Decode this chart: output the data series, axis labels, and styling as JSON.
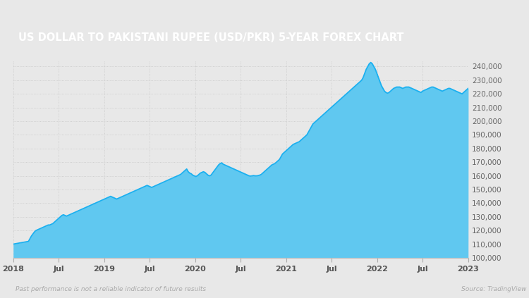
{
  "title": "US DOLLAR TO PAKISTANI RUPEE (USD/PKR) 5-YEAR FOREX CHART",
  "title_bg_color": "#8B5E3C",
  "title_text_color": "#ffffff",
  "bg_color": "#e8e8e8",
  "plot_bg_color": "#e8e8e8",
  "line_color": "#1ab0f0",
  "fill_color_top": "#60c8f0",
  "fill_color_bottom": "#e8f6fd",
  "footer_left": "Past performance is not a reliable indicator of future results",
  "footer_right": "Source: TradingView",
  "footer_color": "#aaaaaa",
  "x_tick_labels": [
    "2018",
    "Jul",
    "2019",
    "Jul",
    "2020",
    "Jul",
    "2021",
    "Jul",
    "2022",
    "Jul",
    "2023"
  ],
  "y_tick_labels": [
    "100,000",
    "110,000",
    "120,000",
    "130,000",
    "140,000",
    "150,000",
    "160,000",
    "170,000",
    "180,000",
    "190,000",
    "200,000",
    "210,000",
    "220,000",
    "230,000",
    "240,000"
  ],
  "y_min": 100000,
  "y_max": 244000,
  "grid_color": "#c8c8c8",
  "series_x": [
    0,
    1,
    2,
    3,
    4,
    5,
    6,
    7,
    8,
    9,
    10,
    11,
    12,
    13,
    14,
    15,
    16,
    17,
    18,
    19,
    20,
    21,
    22,
    23,
    24,
    25,
    26,
    27,
    28,
    29,
    30,
    31,
    32,
    33,
    34,
    35,
    36,
    37,
    38,
    39,
    40,
    41,
    42,
    43,
    44,
    45,
    46,
    47,
    48,
    49,
    50,
    51,
    52,
    53,
    54,
    55,
    56,
    57,
    58,
    59,
    60,
    61,
    62,
    63,
    64,
    65,
    66,
    67,
    68,
    69,
    70,
    71,
    72,
    73,
    74,
    75,
    76,
    77,
    78,
    79,
    80,
    81,
    82,
    83,
    84,
    85,
    86,
    87,
    88,
    89,
    90,
    91,
    92,
    93,
    94,
    95,
    96,
    97,
    98,
    99,
    100,
    101,
    102,
    103,
    104,
    105,
    106,
    107,
    108,
    109,
    110,
    111,
    112,
    113,
    114,
    115,
    116,
    117,
    118,
    119,
    120,
    121,
    122,
    123,
    124,
    125,
    126,
    127,
    128,
    129,
    130,
    131,
    132,
    133,
    134,
    135,
    136,
    137,
    138,
    139,
    140,
    141,
    142,
    143,
    144,
    145,
    146,
    147,
    148,
    149,
    150,
    151,
    152,
    153,
    154,
    155,
    156,
    157,
    158,
    159,
    160,
    161,
    162,
    163,
    164,
    165,
    166,
    167,
    168,
    169,
    170,
    171,
    172,
    173,
    174,
    175,
    176,
    177,
    178,
    179,
    180,
    181,
    182,
    183,
    184,
    185,
    186,
    187,
    188,
    189,
    190,
    191,
    192,
    193,
    194,
    195,
    196,
    197,
    198,
    199,
    200,
    201,
    202,
    203,
    204,
    205,
    206,
    207,
    208,
    209,
    210,
    211,
    212,
    213,
    214,
    215,
    216,
    217,
    218,
    219,
    220,
    221,
    222,
    223,
    224,
    225,
    226,
    227,
    228,
    229,
    230,
    231,
    232,
    233,
    234,
    235,
    236,
    237,
    238,
    239,
    240,
    241,
    242,
    243,
    244,
    245,
    246,
    247,
    248,
    249,
    250,
    251,
    252,
    253,
    254,
    255,
    256,
    257,
    258,
    259,
    260,
    261,
    262,
    263,
    264,
    265,
    266,
    267,
    268,
    269,
    270,
    271,
    272,
    273,
    274,
    275,
    276,
    277,
    278,
    279,
    280,
    281,
    282,
    283,
    284,
    285,
    286,
    287,
    288,
    289,
    290,
    291,
    292,
    293,
    294,
    295,
    296,
    297,
    298,
    299
  ],
  "series_y": [
    110000,
    110200,
    110400,
    110600,
    110800,
    111000,
    111200,
    111400,
    111600,
    111800,
    112000,
    114000,
    116000,
    117500,
    119000,
    120000,
    120500,
    121000,
    121500,
    122000,
    122500,
    123000,
    123500,
    124000,
    124000,
    124500,
    125000,
    126000,
    127000,
    128000,
    129000,
    130000,
    131000,
    131500,
    131000,
    130500,
    131000,
    131500,
    132000,
    132500,
    133000,
    133500,
    134000,
    134500,
    135000,
    135500,
    136000,
    136500,
    137000,
    137500,
    138000,
    138500,
    139000,
    139500,
    140000,
    140500,
    141000,
    141500,
    142000,
    142500,
    143000,
    143500,
    144000,
    144500,
    145000,
    144500,
    144000,
    143500,
    143000,
    143500,
    144000,
    144500,
    145000,
    145500,
    146000,
    146500,
    147000,
    147500,
    148000,
    148500,
    149000,
    149500,
    150000,
    150500,
    151000,
    151500,
    152000,
    152500,
    153000,
    152500,
    152000,
    151500,
    152000,
    152500,
    153000,
    153500,
    154000,
    154500,
    155000,
    155500,
    156000,
    156500,
    157000,
    157500,
    158000,
    158500,
    159000,
    159500,
    160000,
    160500,
    161000,
    162000,
    163000,
    164000,
    165000,
    163000,
    162000,
    161500,
    160500,
    160000,
    159500,
    160000,
    161000,
    162000,
    162500,
    163000,
    162500,
    161500,
    160500,
    160000,
    160500,
    162000,
    163500,
    165000,
    166500,
    168000,
    169000,
    169500,
    168500,
    168000,
    167500,
    167000,
    166500,
    166000,
    165500,
    165000,
    164500,
    164000,
    163500,
    163000,
    162500,
    162000,
    161500,
    161000,
    160500,
    160000,
    159800,
    160000,
    160200,
    160000,
    160000,
    160200,
    160500,
    161000,
    162000,
    163000,
    164000,
    165000,
    166000,
    167000,
    168000,
    168500,
    169000,
    170000,
    171000,
    172000,
    174000,
    176000,
    177000,
    178000,
    179000,
    180000,
    181000,
    182000,
    183000,
    183500,
    184000,
    184500,
    185000,
    186000,
    187000,
    188000,
    189000,
    190000,
    192000,
    194000,
    196000,
    198000,
    199000,
    200000,
    201000,
    202000,
    203000,
    204000,
    205000,
    206000,
    207000,
    208000,
    209000,
    210000,
    211000,
    212000,
    213000,
    214000,
    215000,
    216000,
    217000,
    218000,
    219000,
    220000,
    221000,
    222000,
    223000,
    224000,
    225000,
    226000,
    227000,
    228000,
    229000,
    230000,
    232000,
    235000,
    238000,
    240000,
    242000,
    243000,
    242000,
    240000,
    238000,
    235000,
    232000,
    229000,
    226000,
    224000,
    222000,
    221000,
    220500,
    221000,
    222000,
    223000,
    224000,
    224500,
    225000,
    225000,
    225000,
    224500,
    224000,
    224500,
    225000,
    225000,
    225000,
    224500,
    224000,
    223500,
    223000,
    222500,
    222000,
    221500,
    221000,
    222000,
    222500,
    223000,
    223500,
    224000,
    224500,
    225000,
    225000,
    224500,
    224000,
    223500,
    223000,
    222500,
    222000,
    222500,
    223000,
    223500,
    224000,
    224000,
    223500,
    223000,
    222500,
    222000,
    221500,
    221000,
    220500,
    220000,
    221000,
    222000,
    223000,
    224000
  ]
}
